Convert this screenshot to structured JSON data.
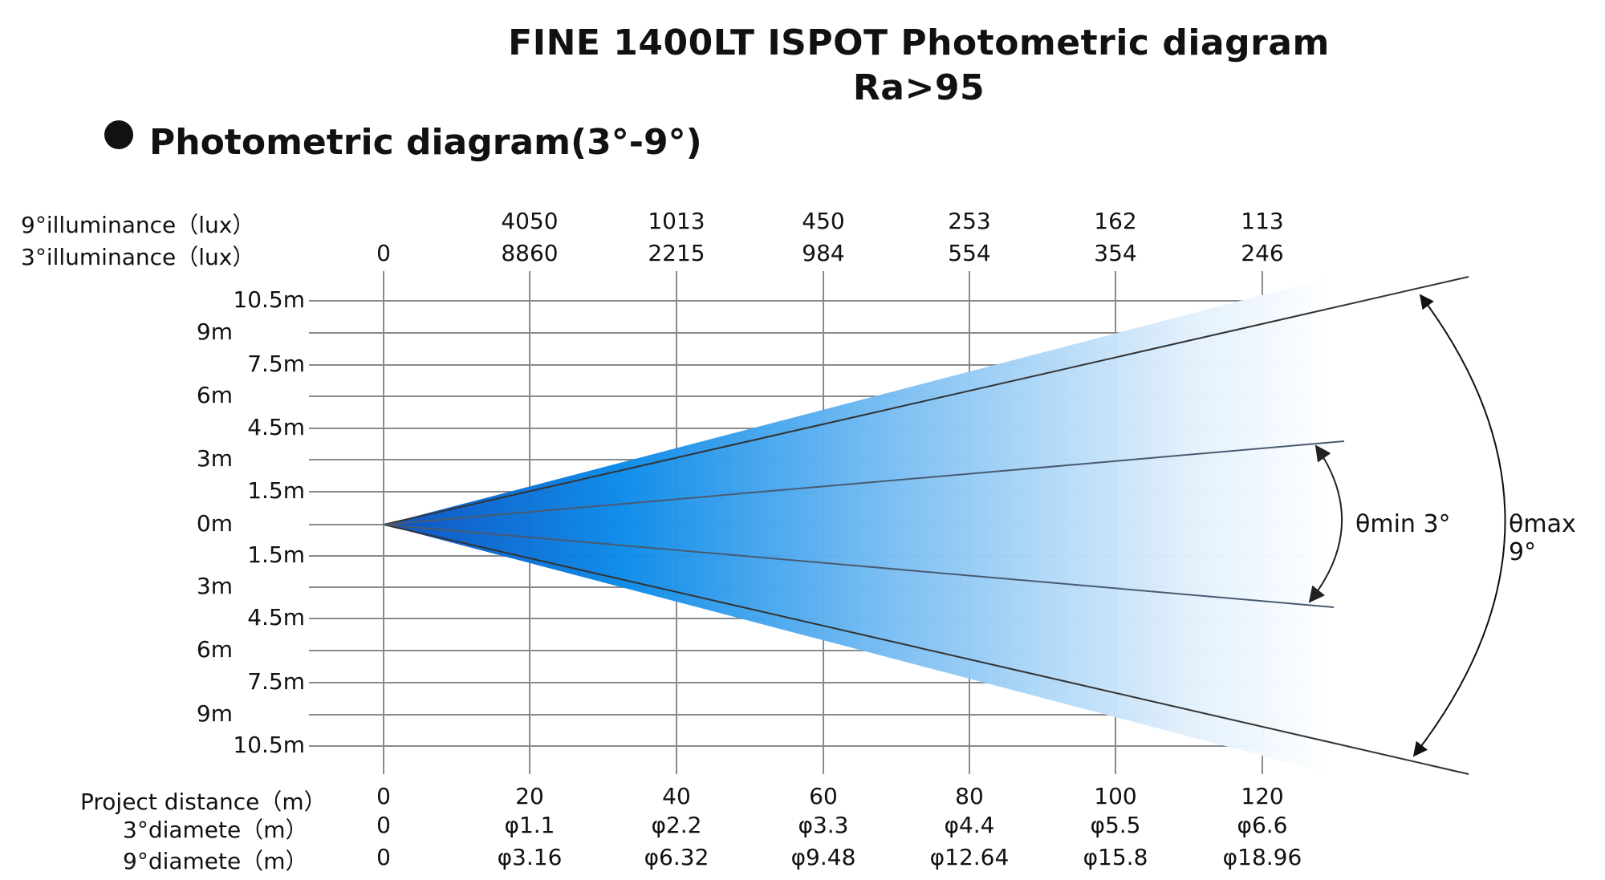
{
  "title": "FINE 1400LT ISPOT Photometric diagram",
  "subtitle": "Ra>95",
  "section_heading": "Photometric diagram(3°-9°)",
  "rows": {
    "illum9_label": "9°illuminance（lux）",
    "illum3_label": "3°illuminance（lux）",
    "distance_label": "Project distance（m）",
    "dia3_label": "3°diamete（m）",
    "dia9_label": "9°diamete（m）"
  },
  "columns": [
    {
      "distance": "0",
      "illum9": "",
      "illum3": "0",
      "dia3": "0",
      "dia9": "0"
    },
    {
      "distance": "20",
      "illum9": "4050",
      "illum3": "8860",
      "dia3": "φ1.1",
      "dia9": "φ3.16"
    },
    {
      "distance": "40",
      "illum9": "1013",
      "illum3": "2215",
      "dia3": "φ2.2",
      "dia9": "φ6.32"
    },
    {
      "distance": "60",
      "illum9": "450",
      "illum3": "984",
      "dia3": "φ3.3",
      "dia9": "φ9.48"
    },
    {
      "distance": "80",
      "illum9": "253",
      "illum3": "554",
      "dia3": "φ4.4",
      "dia9": "φ12.64"
    },
    {
      "distance": "100",
      "illum9": "162",
      "illum3": "354",
      "dia3": "φ5.5",
      "dia9": "φ15.8"
    },
    {
      "distance": "120",
      "illum9": "113",
      "illum3": "246",
      "dia3": "φ6.6",
      "dia9": "φ18.96"
    }
  ],
  "y_labels": [
    "10.5m",
    "9m",
    "7.5m",
    "6m",
    "4.5m",
    "3m",
    "1.5m",
    "0m",
    "1.5m",
    "3m",
    "4.5m",
    "6m",
    "7.5m",
    "9m",
    "10.5m"
  ],
  "angle_min_label": "θmin 3°",
  "angle_max_label": "θmax 9°",
  "colors": {
    "beam_dark": "#0a56c4",
    "beam_mid": "#0a8ae8",
    "grid": "#8a8a8a",
    "line": "#333333"
  }
}
